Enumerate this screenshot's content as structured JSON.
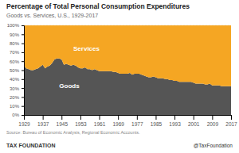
{
  "chart_data": {
    "type": "area",
    "stacked": true,
    "title": "Percentage of Total Personal Consumption Expenditures",
    "subtitle": "Goods vs. Services, U.S., 1929-2017",
    "source": "Source: Bureau of Economic Analysis, Regional Economic Accounts.",
    "footer": [
      "TAX FOUNDATION",
      "@TaxFoundation"
    ],
    "x": [
      1929,
      1930,
      1931,
      1932,
      1933,
      1934,
      1935,
      1936,
      1937,
      1938,
      1939,
      1940,
      1941,
      1942,
      1943,
      1944,
      1945,
      1946,
      1947,
      1948,
      1949,
      1950,
      1951,
      1952,
      1953,
      1954,
      1955,
      1956,
      1957,
      1958,
      1959,
      1960,
      1961,
      1962,
      1963,
      1964,
      1965,
      1966,
      1967,
      1968,
      1969,
      1970,
      1971,
      1972,
      1973,
      1974,
      1975,
      1976,
      1977,
      1978,
      1979,
      1980,
      1981,
      1982,
      1983,
      1984,
      1985,
      1986,
      1987,
      1988,
      1989,
      1990,
      1991,
      1992,
      1993,
      1994,
      1995,
      1996,
      1997,
      1998,
      1999,
      2000,
      2001,
      2002,
      2003,
      2004,
      2005,
      2006,
      2007,
      2008,
      2009,
      2010,
      2011,
      2012,
      2013,
      2014,
      2015,
      2016,
      2017
    ],
    "series": [
      {
        "color": "#555555",
        "values": [
          55,
          52,
          51,
          50,
          50,
          51,
          52,
          54,
          56,
          52,
          54,
          55,
          58,
          62,
          63,
          63,
          62,
          56,
          57,
          56,
          55,
          56,
          55,
          53,
          52,
          52,
          53,
          51,
          51,
          50,
          51,
          50,
          49,
          49,
          49,
          49,
          49,
          49,
          48,
          48,
          47,
          46,
          46,
          46,
          46,
          47,
          45,
          46,
          46,
          46,
          45,
          44,
          43,
          42,
          42,
          43,
          42,
          41,
          41,
          41,
          40,
          40,
          39,
          39,
          38,
          38,
          37,
          37,
          37,
          37,
          37,
          37,
          36,
          35,
          35,
          35,
          35,
          34,
          34,
          35,
          33,
          33,
          33,
          33,
          32,
          32,
          32,
          32,
          32
        ]
      },
      {
        "color": "#F5A623",
        "values": [
          45,
          48,
          49,
          50,
          50,
          49,
          48,
          46,
          44,
          48,
          46,
          45,
          42,
          38,
          37,
          37,
          38,
          44,
          43,
          44,
          45,
          44,
          45,
          47,
          48,
          48,
          47,
          49,
          49,
          50,
          49,
          50,
          51,
          51,
          51,
          51,
          51,
          51,
          52,
          52,
          53,
          54,
          54,
          54,
          54,
          53,
          55,
          54,
          54,
          54,
          55,
          56,
          57,
          58,
          58,
          57,
          58,
          59,
          59,
          59,
          60,
          60,
          61,
          61,
          62,
          62,
          63,
          63,
          63,
          63,
          63,
          63,
          64,
          65,
          65,
          65,
          65,
          66,
          66,
          65,
          67,
          67,
          67,
          67,
          68,
          68,
          68,
          68,
          68
        ]
      }
    ],
    "annotations": [
      {
        "text": "Services",
        "x": 1950,
        "y": 72
      },
      {
        "text": "Goods",
        "x": 1944,
        "y": 30
      }
    ],
    "xlim": [
      1929,
      2017
    ],
    "xticks": [
      1929,
      1937,
      1945,
      1953,
      1961,
      1969,
      1977,
      1985,
      1993,
      2001,
      2009,
      2017
    ],
    "ylim": [
      0,
      100
    ],
    "yticks": [
      {
        "value": 0,
        "label": "0%"
      },
      {
        "value": 10,
        "label": "10%"
      },
      {
        "value": 20,
        "label": "20%"
      },
      {
        "value": 30,
        "label": "30%"
      },
      {
        "value": 40,
        "label": "40%"
      },
      {
        "value": 50,
        "label": "50%"
      },
      {
        "value": 60,
        "label": "60%"
      },
      {
        "value": 70,
        "label": "70%"
      },
      {
        "value": 80,
        "label": "80%"
      },
      {
        "value": 90,
        "label": "90%"
      },
      {
        "value": 100,
        "label": "100%"
      }
    ],
    "grid": true
  }
}
